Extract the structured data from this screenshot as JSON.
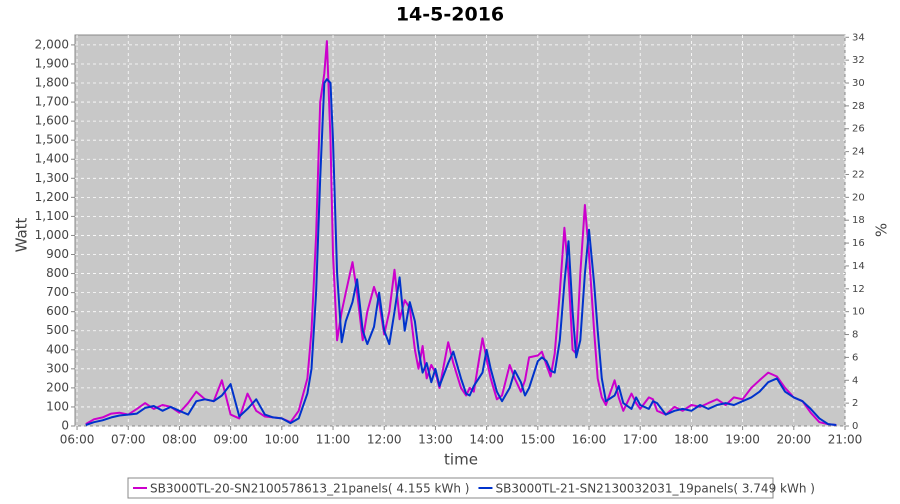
{
  "chart_data": {
    "type": "line",
    "title": "14-5-2016",
    "x_label": "time",
    "y_label": "Watt",
    "y2_label": "%",
    "xlim": [
      5.96,
      21.0
    ],
    "ylim": [
      0,
      2052
    ],
    "y2lim": [
      0,
      34.2
    ],
    "grid": true,
    "xticks": [
      {
        "value": 6,
        "label": "06:00"
      },
      {
        "value": 7,
        "label": "07:00"
      },
      {
        "value": 8,
        "label": "08:00"
      },
      {
        "value": 9,
        "label": "09:00"
      },
      {
        "value": 10,
        "label": "10:00"
      },
      {
        "value": 11,
        "label": "11:00"
      },
      {
        "value": 12,
        "label": "12:00"
      },
      {
        "value": 13,
        "label": "13:00"
      },
      {
        "value": 14,
        "label": "14:00"
      },
      {
        "value": 15,
        "label": "15:00"
      },
      {
        "value": 16,
        "label": "16:00"
      },
      {
        "value": 17,
        "label": "17:00"
      },
      {
        "value": 18,
        "label": "18:00"
      },
      {
        "value": 19,
        "label": "19:00"
      },
      {
        "value": 20,
        "label": "20:00"
      },
      {
        "value": 21,
        "label": "21:00"
      }
    ],
    "yticks": [
      0,
      100,
      200,
      300,
      400,
      500,
      600,
      700,
      800,
      900,
      {
        "value": 1000,
        "label": "1,000"
      },
      {
        "value": 1100,
        "label": "1,100"
      },
      {
        "value": 1200,
        "label": "1,200"
      },
      {
        "value": 1300,
        "label": "1,300"
      },
      {
        "value": 1400,
        "label": "1,400"
      },
      {
        "value": 1500,
        "label": "1,500"
      },
      {
        "value": 1600,
        "label": "1,600"
      },
      {
        "value": 1700,
        "label": "1,700"
      },
      {
        "value": 1800,
        "label": "1,800"
      },
      {
        "value": 1900,
        "label": "1,900"
      },
      {
        "value": 2000,
        "label": "2,000"
      }
    ],
    "y2ticks": [
      0,
      2,
      4,
      6,
      8,
      10,
      12,
      14,
      16,
      18,
      20,
      22,
      24,
      26,
      28,
      30,
      32,
      34
    ],
    "x": [
      6.17,
      6.33,
      6.5,
      6.67,
      6.83,
      7.0,
      7.17,
      7.33,
      7.5,
      7.67,
      7.83,
      8.0,
      8.17,
      8.33,
      8.5,
      8.67,
      8.83,
      9.0,
      9.17,
      9.33,
      9.5,
      9.67,
      9.83,
      10.0,
      10.17,
      10.33,
      10.5,
      10.58,
      10.67,
      10.75,
      10.83,
      10.88,
      10.95,
      11.0,
      11.08,
      11.17,
      11.25,
      11.38,
      11.47,
      11.58,
      11.67,
      11.8,
      11.9,
      12.0,
      12.1,
      12.2,
      12.3,
      12.4,
      12.5,
      12.6,
      12.67,
      12.75,
      12.83,
      12.92,
      13.0,
      13.08,
      13.25,
      13.35,
      13.5,
      13.6,
      13.67,
      13.75,
      13.92,
      14.0,
      14.08,
      14.2,
      14.3,
      14.45,
      14.55,
      14.67,
      14.75,
      14.83,
      15.0,
      15.08,
      15.17,
      15.25,
      15.33,
      15.43,
      15.52,
      15.6,
      15.68,
      15.75,
      15.83,
      15.92,
      16.0,
      16.1,
      16.17,
      16.25,
      16.33,
      16.5,
      16.58,
      16.67,
      16.83,
      16.92,
      17.0,
      17.17,
      17.25,
      17.33,
      17.5,
      17.67,
      17.83,
      18.0,
      18.17,
      18.33,
      18.5,
      18.67,
      18.83,
      19.0,
      19.17,
      19.33,
      19.5,
      19.67,
      19.83,
      20.0,
      20.17,
      20.33,
      20.5,
      20.67,
      20.83
    ],
    "series": [
      {
        "name": "SB3000TL-20-SN2100578613_21panels( 4.155 kWh )",
        "color": "#cc00cc",
        "values": [
          10,
          35,
          45,
          65,
          70,
          60,
          90,
          120,
          90,
          110,
          100,
          70,
          120,
          180,
          140,
          130,
          240,
          60,
          40,
          170,
          80,
          50,
          45,
          40,
          20,
          80,
          250,
          500,
          1000,
          1700,
          1850,
          2020,
          1500,
          900,
          450,
          600,
          700,
          860,
          700,
          450,
          600,
          730,
          650,
          480,
          600,
          820,
          560,
          660,
          620,
          400,
          300,
          420,
          250,
          320,
          280,
          200,
          440,
          330,
          200,
          160,
          200,
          180,
          460,
          350,
          250,
          140,
          160,
          320,
          250,
          180,
          240,
          360,
          370,
          390,
          320,
          260,
          380,
          700,
          1040,
          800,
          400,
          380,
          800,
          1160,
          900,
          500,
          250,
          150,
          110,
          240,
          150,
          80,
          170,
          120,
          90,
          150,
          140,
          80,
          60,
          100,
          80,
          110,
          100,
          120,
          140,
          110,
          150,
          140,
          200,
          240,
          280,
          260,
          200,
          150,
          130,
          70,
          20,
          10,
          5
        ]
      },
      {
        "name": "SB3000TL-21-SN2130032031_19panels( 3.749 kWh )",
        "color": "#0033cc",
        "values": [
          5,
          20,
          30,
          45,
          55,
          60,
          65,
          95,
          105,
          80,
          100,
          80,
          60,
          130,
          140,
          130,
          160,
          220,
          50,
          90,
          140,
          60,
          45,
          40,
          15,
          40,
          170,
          300,
          700,
          1300,
          1800,
          1820,
          1800,
          1500,
          800,
          440,
          550,
          650,
          770,
          500,
          430,
          520,
          700,
          500,
          430,
          600,
          780,
          500,
          650,
          550,
          400,
          280,
          330,
          230,
          300,
          210,
          330,
          390,
          250,
          170,
          160,
          210,
          280,
          400,
          300,
          180,
          130,
          200,
          290,
          230,
          160,
          200,
          340,
          360,
          340,
          290,
          280,
          450,
          750,
          970,
          600,
          360,
          450,
          800,
          1030,
          750,
          500,
          250,
          130,
          160,
          210,
          120,
          90,
          150,
          110,
          90,
          130,
          120,
          60,
          80,
          90,
          80,
          110,
          90,
          110,
          120,
          110,
          130,
          150,
          180,
          230,
          250,
          180,
          150,
          130,
          90,
          40,
          10,
          5
        ]
      }
    ]
  }
}
